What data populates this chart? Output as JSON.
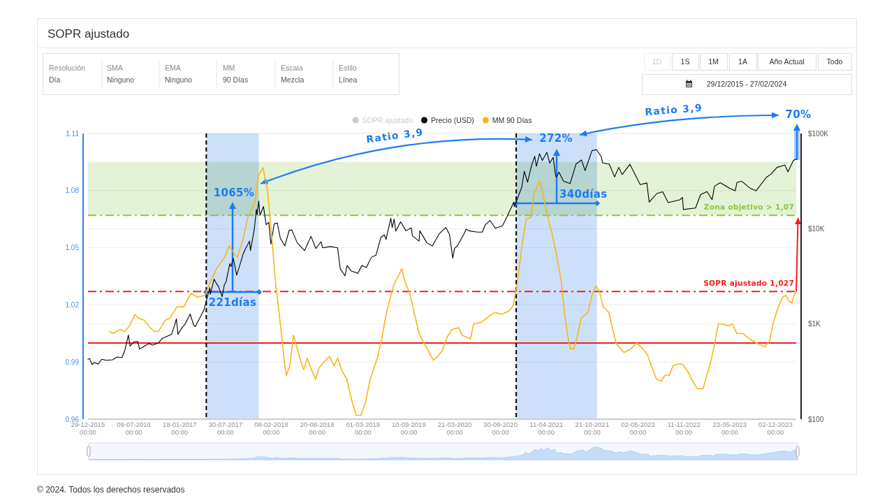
{
  "chart_data": {
    "type": "line",
    "title": "SOPR ajustado",
    "xlim": [
      "2015-12-29",
      "2024-02-27"
    ],
    "xticks": [
      {
        "value": "2015-12-29",
        "label": "29-12-2015\n00:00"
      },
      {
        "value": "2016-07-09",
        "label": "09-07-2016\n00:00"
      },
      {
        "value": "2017-01-18",
        "label": "18-01-2017\n00:00"
      },
      {
        "value": "2017-07-30",
        "label": "30-07-2017\n00:00"
      },
      {
        "value": "2018-02-08",
        "label": "08-02-2018\n00:00"
      },
      {
        "value": "2018-08-20",
        "label": "20-08-2018\n00:00"
      },
      {
        "value": "2019-03-01",
        "label": "01-03-2019\n00:00"
      },
      {
        "value": "2019-09-10",
        "label": "10-09-2019\n00:00"
      },
      {
        "value": "2020-03-21",
        "label": "21-03-2020\n00:00"
      },
      {
        "value": "2020-09-30",
        "label": "30-09-2020\n00:00"
      },
      {
        "value": "2021-04-11",
        "label": "11-04-2021\n00:00"
      },
      {
        "value": "2021-10-21",
        "label": "21-10-2021\n00:00"
      },
      {
        "value": "2022-05-02",
        "label": "02-05-2022\n00:00"
      },
      {
        "value": "2022-11-11",
        "label": "11-11-2022\n00:00"
      },
      {
        "value": "2023-05-23",
        "label": "23-05-2023\n00:00"
      },
      {
        "value": "2023-12-02",
        "label": "02-12-2023\n00:00"
      }
    ],
    "ylim": [
      0.96,
      1.11
    ],
    "yticks": [
      0.96,
      0.99,
      1.02,
      1.05,
      1.08,
      1.11
    ],
    "y2lim": [
      100,
      100000
    ],
    "y2ticks": [
      {
        "value": 100,
        "label": "$100"
      },
      {
        "value": 1000,
        "label": "$1K"
      },
      {
        "value": 10000,
        "label": "$10K"
      },
      {
        "value": 100000,
        "label": "$100K"
      }
    ],
    "log": "y2",
    "grid": "y",
    "legend": "top",
    "series": [
      {
        "name": "SOPR ajustado",
        "color": "#cccccc"
      },
      {
        "name": "Precio (USD)",
        "color": "#000000",
        "axis": "y2",
        "x": [
          "2015-12-29",
          "2016-01-05",
          "2016-01-15",
          "2016-01-26",
          "2016-02-10",
          "2016-02-25",
          "2016-03-15",
          "2016-04-10",
          "2016-04-30",
          "2016-05-20",
          "2016-06-02",
          "2016-06-16",
          "2016-06-23",
          "2016-07-10",
          "2016-07-25",
          "2016-08-02",
          "2016-08-20",
          "2016-09-10",
          "2016-09-25",
          "2016-10-20",
          "2016-11-05",
          "2016-11-25",
          "2016-12-15",
          "2016-12-28",
          "2017-01-04",
          "2017-01-11",
          "2017-01-25",
          "2017-02-10",
          "2017-02-25",
          "2017-03-03",
          "2017-03-18",
          "2017-03-25",
          "2017-04-15",
          "2017-05-01",
          "2017-05-10",
          "2017-05-25",
          "2017-05-27",
          "2017-06-12",
          "2017-06-20",
          "2017-07-01",
          "2017-07-16",
          "2017-07-25",
          "2017-08-01",
          "2017-08-17",
          "2017-08-22",
          "2017-09-01",
          "2017-09-15",
          "2017-09-25",
          "2017-10-12",
          "2017-10-20",
          "2017-11-08",
          "2017-11-12",
          "2017-11-28",
          "2017-12-07",
          "2017-12-10",
          "2017-12-17",
          "2017-12-22",
          "2018-01-06",
          "2018-01-17",
          "2018-01-28",
          "2018-02-06",
          "2018-02-20",
          "2018-03-05",
          "2018-03-18",
          "2018-04-06",
          "2018-04-24",
          "2018-05-05",
          "2018-05-28",
          "2018-06-28",
          "2018-07-25",
          "2018-08-14",
          "2018-09-05",
          "2018-09-12",
          "2018-10-15",
          "2018-11-14",
          "2018-11-25",
          "2018-12-15",
          "2018-12-24",
          "2019-01-10",
          "2019-02-07",
          "2019-02-24",
          "2019-03-15",
          "2019-04-05",
          "2019-04-25",
          "2019-05-15",
          "2019-05-30",
          "2019-06-06",
          "2019-06-26",
          "2019-07-02",
          "2019-07-10",
          "2019-07-17",
          "2019-08-06",
          "2019-08-29",
          "2019-09-20",
          "2019-09-25",
          "2019-10-23",
          "2019-10-26",
          "2019-11-25",
          "2019-12-18",
          "2020-01-15",
          "2020-02-13",
          "2020-02-28",
          "2020-03-13",
          "2020-03-20",
          "2020-04-01",
          "2020-04-29",
          "2020-05-08",
          "2020-05-20",
          "2020-06-25",
          "2020-07-15",
          "2020-07-28",
          "2020-08-17",
          "2020-09-08",
          "2020-10-08",
          "2020-10-25",
          "2020-11-25",
          "2020-11-27",
          "2020-12-05",
          "2020-12-17",
          "2020-12-28",
          "2021-01-08",
          "2021-01-22",
          "2021-02-08",
          "2021-02-21",
          "2021-02-28",
          "2021-03-13",
          "2021-03-25",
          "2021-04-13",
          "2021-04-25",
          "2021-05-10",
          "2021-05-19",
          "2021-05-23",
          "2021-06-03",
          "2021-06-22",
          "2021-07-20",
          "2021-08-14",
          "2021-09-06",
          "2021-09-21",
          "2021-10-20",
          "2021-11-08",
          "2021-11-28",
          "2021-12-04",
          "2022-01-01",
          "2022-01-23",
          "2022-02-10",
          "2022-02-24",
          "2022-03-29",
          "2022-05-11",
          "2022-06-08",
          "2022-06-18",
          "2022-07-20",
          "2022-08-14",
          "2022-09-06",
          "2022-10-25",
          "2022-11-05",
          "2022-11-09",
          "2022-12-30",
          "2023-01-20",
          "2023-02-16",
          "2023-03-10",
          "2023-03-20",
          "2023-04-13",
          "2023-05-25",
          "2023-06-15",
          "2023-06-23",
          "2023-07-13",
          "2023-08-17",
          "2023-09-11",
          "2023-10-24",
          "2023-11-15",
          "2023-12-08",
          "2024-01-10",
          "2024-01-23",
          "2024-02-15",
          "2024-02-27"
        ],
        "values": [
          425,
          432,
          375,
          395,
          378,
          425,
          415,
          420,
          450,
          442,
          537,
          765,
          585,
          650,
          655,
          545,
          580,
          623,
          600,
          630,
          703,
          740,
          780,
          975,
          1130,
          780,
          890,
          1000,
          1180,
          1270,
          970,
          940,
          1180,
          1420,
          1750,
          2400,
          2050,
          2950,
          2700,
          2450,
          1930,
          2580,
          2750,
          4300,
          4000,
          4900,
          3250,
          3900,
          5400,
          6000,
          7400,
          5900,
          9800,
          16000,
          14000,
          19500,
          13800,
          17100,
          11000,
          11700,
          6900,
          11200,
          11500,
          7900,
          6600,
          9600,
          9700,
          7100,
          5900,
          8300,
          6200,
          7300,
          6300,
          6500,
          6300,
          3800,
          3200,
          4100,
          3600,
          3400,
          4100,
          3900,
          5000,
          5300,
          8100,
          8600,
          7700,
          12900,
          10300,
          12600,
          9400,
          11800,
          9500,
          10200,
          8400,
          7400,
          9500,
          7100,
          6600,
          8800,
          10300,
          8700,
          4900,
          6200,
          6600,
          8800,
          9900,
          9500,
          9200,
          9200,
          11000,
          12200,
          10100,
          10700,
          13000,
          19000,
          17000,
          19100,
          23000,
          27000,
          40000,
          30800,
          46400,
          57500,
          45200,
          61200,
          52000,
          63500,
          49000,
          56000,
          37000,
          34700,
          39200,
          31600,
          29800,
          47800,
          52600,
          40700,
          66000,
          67500,
          57000,
          49000,
          47500,
          35000,
          44000,
          37000,
          47400,
          29000,
          30200,
          19000,
          23400,
          24400,
          18800,
          20100,
          21300,
          15900,
          16500,
          22700,
          24500,
          20200,
          28000,
          30400,
          26300,
          25000,
          30700,
          31400,
          26600,
          25000,
          34500,
          37800,
          44000,
          46600,
          39500,
          52000,
          54000
        ]
      },
      {
        "name": "MM 90 Días",
        "color": "#f9b418",
        "x": [
          "2016-03-28",
          "2016-04-12",
          "2016-05-12",
          "2016-06-01",
          "2016-06-20",
          "2016-07-14",
          "2016-07-29",
          "2016-08-22",
          "2016-09-16",
          "2016-10-05",
          "2016-10-20",
          "2016-11-19",
          "2016-12-08",
          "2017-01-07",
          "2017-02-05",
          "2017-03-06",
          "2017-04-05",
          "2017-05-04",
          "2017-05-24",
          "2017-06-22",
          "2017-07-26",
          "2017-08-15",
          "2017-09-04",
          "2017-09-18",
          "2017-10-13",
          "2017-11-01",
          "2017-12-01",
          "2017-12-16",
          "2018-01-04",
          "2018-01-24",
          "2018-02-12",
          "2018-02-27",
          "2018-03-19",
          "2018-04-03",
          "2018-04-12",
          "2018-04-27",
          "2018-05-12",
          "2018-05-26",
          "2018-06-10",
          "2018-06-25",
          "2018-07-09",
          "2018-07-24",
          "2018-08-13",
          "2018-08-28",
          "2018-09-10",
          "2018-10-11",
          "2018-10-30",
          "2018-11-14",
          "2018-12-04",
          "2018-12-23",
          "2019-01-12",
          "2019-01-31",
          "2019-02-20",
          "2019-03-12",
          "2019-03-31",
          "2019-04-30",
          "2019-05-19",
          "2019-06-03",
          "2019-06-18",
          "2019-07-07",
          "2019-07-27",
          "2019-08-11",
          "2019-08-25",
          "2019-09-14",
          "2019-10-04",
          "2019-10-23",
          "2019-11-12",
          "2019-12-01",
          "2019-12-21",
          "2020-01-10",
          "2020-01-29",
          "2020-02-18",
          "2020-03-08",
          "2020-04-07",
          "2020-04-21",
          "2020-05-11",
          "2020-05-26",
          "2020-06-09",
          "2020-07-14",
          "2020-08-12",
          "2020-09-06",
          "2020-10-05",
          "2020-11-08",
          "2020-11-23",
          "2020-12-08",
          "2020-12-27",
          "2021-01-16",
          "2021-02-05",
          "2021-02-19",
          "2021-03-14",
          "2021-03-31",
          "2021-04-19",
          "2021-05-04",
          "2021-05-24",
          "2021-06-12",
          "2021-06-27",
          "2021-07-11",
          "2021-07-21",
          "2021-08-05",
          "2021-08-20",
          "2021-09-04",
          "2021-10-03",
          "2021-10-22",
          "2021-11-06",
          "2021-11-21",
          "2021-12-06",
          "2021-12-30",
          "2022-01-14",
          "2022-01-29",
          "2022-02-17",
          "2022-03-04",
          "2022-04-02",
          "2022-04-27",
          "2022-05-21",
          "2022-06-10",
          "2022-06-30",
          "2022-07-19",
          "2022-08-08",
          "2022-08-23",
          "2022-09-11",
          "2022-09-26",
          "2022-10-15",
          "2022-11-04",
          "2022-11-28",
          "2022-12-18",
          "2023-01-06",
          "2023-01-31",
          "2023-02-20",
          "2023-03-06",
          "2023-03-21",
          "2023-04-05",
          "2023-04-19",
          "2023-05-19",
          "2023-06-03",
          "2023-06-22",
          "2023-07-17",
          "2023-08-15",
          "2023-09-13",
          "2023-10-18",
          "2023-11-07",
          "2023-11-21",
          "2023-12-11",
          "2023-12-31",
          "2024-01-14",
          "2024-01-29",
          "2024-02-08",
          "2024-02-18",
          "2024-02-27"
        ],
        "values": [
          1.006,
          1.005,
          1.007,
          1.006,
          1.009,
          1.015,
          1.013,
          1.012,
          1.008,
          1.006,
          1.006,
          1.012,
          1.013,
          1.019,
          1.019,
          1.026,
          1.024,
          1.025,
          1.031,
          1.039,
          1.045,
          1.051,
          1.047,
          1.045,
          1.055,
          1.066,
          1.074,
          1.088,
          1.092,
          1.079,
          1.052,
          1.03,
          1.009,
          0.991,
          0.983,
          0.988,
          1.004,
          0.998,
          0.991,
          0.986,
          0.992,
          0.987,
          0.981,
          0.987,
          0.989,
          0.993,
          0.988,
          0.992,
          0.985,
          0.981,
          0.97,
          0.962,
          0.962,
          0.969,
          0.981,
          0.992,
          1.002,
          1.013,
          1.021,
          1.03,
          1.035,
          1.039,
          1.032,
          1.026,
          1.015,
          1.005,
          1.0,
          0.996,
          0.991,
          0.993,
          0.996,
          1.003,
          1.007,
          1.008,
          1.004,
          1.003,
          1.002,
          1.01,
          1.011,
          1.014,
          1.016,
          1.015,
          1.017,
          1.02,
          1.03,
          1.049,
          1.065,
          1.066,
          1.079,
          1.085,
          1.076,
          1.065,
          1.058,
          1.046,
          1.033,
          1.015,
          1.003,
          0.997,
          0.997,
          1.004,
          1.013,
          1.016,
          1.026,
          1.03,
          1.027,
          1.019,
          1.016,
          1.008,
          1.0,
          0.997,
          0.995,
          0.997,
          1.0,
          0.997,
          0.994,
          0.987,
          0.981,
          0.98,
          0.983,
          0.983,
          0.988,
          0.989,
          0.989,
          0.985,
          0.98,
          0.976,
          0.976,
          0.985,
          0.991,
          1.0,
          1.01,
          1.01,
          1.009,
          1.01,
          1.005,
          1.005,
          1.002,
          1.0,
          0.998,
          1.001,
          1.01,
          1.018,
          1.024,
          1.025,
          1.022,
          1.021,
          1.025,
          1.027
        ]
      }
    ],
    "bands": [
      {
        "axis": "y",
        "from": 1.067,
        "to": 1.095,
        "color": "#e4f2d6"
      },
      {
        "axis": "x",
        "from": "2017-05-10",
        "to": "2017-12-17",
        "color": "#cce0fa"
      },
      {
        "axis": "x",
        "from": "2020-12-05",
        "to": "2021-11-10",
        "color": "#cce0fa"
      }
    ],
    "ref_lines": [
      {
        "axis": "y",
        "value": 1,
        "color": "#ff1a1a"
      },
      {
        "axis": "y",
        "value": 1.027,
        "label": "SOPR ajustado 1,027",
        "color": "#ff1a1a",
        "line_style": "dashdot"
      },
      {
        "axis": "y",
        "value": 1.067,
        "label": "Zona objetivo > 1,07",
        "color": "#8cc63f",
        "line_style": "dashdot"
      },
      {
        "axis": "x",
        "value": "2017-05-10",
        "color": "#000000",
        "line_style": "dashed"
      },
      {
        "axis": "x",
        "value": "2020-12-05",
        "color": "#000000",
        "line_style": "dashed"
      }
    ],
    "annotations": [
      "Resolución",
      "Día",
      "SMA",
      "Ninguno",
      "EMA",
      "Ninguno",
      "MM",
      "90 Días",
      "Escala",
      "Mezcla",
      "Estilo",
      "Línea",
      "1D",
      "1S",
      "1M",
      "1A",
      "Año Actual",
      "Todo",
      "29/12/2015 - 27/02/2024",
      {
        "text": "1065%",
        "x": "2017-12-17",
        "y": 1.074
      },
      "221días",
      "Ratio 3,9",
      {
        "text": "272%",
        "x": "2021-11-10",
        "y": 1.102
      },
      {
        "text": "340días",
        "x": "2020-12-05",
        "y": 1.073
      },
      "Ratio 3,9",
      "70%",
      "© 2024. Todos los derechos reservados"
    ]
  }
}
